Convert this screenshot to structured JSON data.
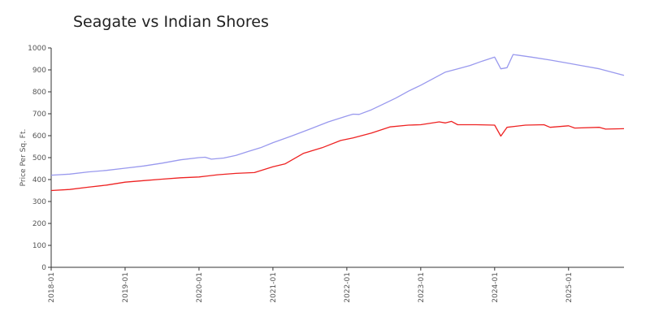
{
  "chart_data": {
    "type": "line",
    "title": "Seagate vs Indian Shores",
    "xlabel": "",
    "ylabel": "Price Per Sq. Ft.",
    "ylim": [
      0,
      1000
    ],
    "yticks": [
      0,
      100,
      200,
      300,
      400,
      500,
      600,
      700,
      800,
      900,
      1000
    ],
    "xticks": [
      "2018-01",
      "2019-01",
      "2020-01",
      "2021-01",
      "2022-01",
      "2023-01",
      "2024-01",
      "2025-01"
    ],
    "x_start": "2018-01",
    "x_end": "2025-10",
    "grid": false,
    "legend": "none",
    "series": [
      {
        "color": "#9999ee",
        "points": [
          [
            "2018-01",
            420
          ],
          [
            "2018-04",
            425
          ],
          [
            "2018-07",
            435
          ],
          [
            "2018-10",
            442
          ],
          [
            "2019-01",
            452
          ],
          [
            "2019-04",
            462
          ],
          [
            "2019-07",
            475
          ],
          [
            "2019-10",
            490
          ],
          [
            "2020-01",
            500
          ],
          [
            "2020-02",
            502
          ],
          [
            "2020-03",
            493
          ],
          [
            "2020-05",
            498
          ],
          [
            "2020-07",
            510
          ],
          [
            "2020-09",
            528
          ],
          [
            "2020-11",
            545
          ],
          [
            "2021-01",
            568
          ],
          [
            "2021-04",
            598
          ],
          [
            "2021-07",
            630
          ],
          [
            "2021-10",
            663
          ],
          [
            "2022-01",
            690
          ],
          [
            "2022-02",
            698
          ],
          [
            "2022-03",
            697
          ],
          [
            "2022-05",
            718
          ],
          [
            "2022-07",
            745
          ],
          [
            "2022-09",
            772
          ],
          [
            "2022-11",
            803
          ],
          [
            "2023-01",
            830
          ],
          [
            "2023-03",
            860
          ],
          [
            "2023-05",
            890
          ],
          [
            "2023-07",
            905
          ],
          [
            "2023-09",
            920
          ],
          [
            "2023-11",
            940
          ],
          [
            "2024-01",
            958
          ],
          [
            "2024-02",
            905
          ],
          [
            "2024-03",
            910
          ],
          [
            "2024-04",
            970
          ],
          [
            "2024-07",
            958
          ],
          [
            "2024-10",
            945
          ],
          [
            "2025-01",
            930
          ],
          [
            "2025-03",
            920
          ],
          [
            "2025-06",
            905
          ],
          [
            "2025-08",
            890
          ],
          [
            "2025-10",
            875
          ]
        ]
      },
      {
        "color": "#ee2222",
        "points": [
          [
            "2018-01",
            350
          ],
          [
            "2018-04",
            355
          ],
          [
            "2018-07",
            365
          ],
          [
            "2018-10",
            375
          ],
          [
            "2019-01",
            388
          ],
          [
            "2019-04",
            395
          ],
          [
            "2019-07",
            402
          ],
          [
            "2019-10",
            408
          ],
          [
            "2020-01",
            412
          ],
          [
            "2020-04",
            422
          ],
          [
            "2020-07",
            428
          ],
          [
            "2020-10",
            432
          ],
          [
            "2021-01",
            458
          ],
          [
            "2021-03",
            472
          ],
          [
            "2021-06",
            520
          ],
          [
            "2021-09",
            545
          ],
          [
            "2021-12",
            578
          ],
          [
            "2022-02",
            590
          ],
          [
            "2022-05",
            612
          ],
          [
            "2022-08",
            640
          ],
          [
            "2022-11",
            648
          ],
          [
            "2023-01",
            650
          ],
          [
            "2023-04",
            663
          ],
          [
            "2023-05",
            658
          ],
          [
            "2023-06",
            665
          ],
          [
            "2023-07",
            650
          ],
          [
            "2023-10",
            650
          ],
          [
            "2024-01",
            648
          ],
          [
            "2024-02",
            598
          ],
          [
            "2024-03",
            638
          ],
          [
            "2024-06",
            648
          ],
          [
            "2024-09",
            650
          ],
          [
            "2024-10",
            638
          ],
          [
            "2025-01",
            645
          ],
          [
            "2025-02",
            635
          ],
          [
            "2025-06",
            638
          ],
          [
            "2025-07",
            630
          ],
          [
            "2025-10",
            632
          ]
        ]
      }
    ]
  }
}
